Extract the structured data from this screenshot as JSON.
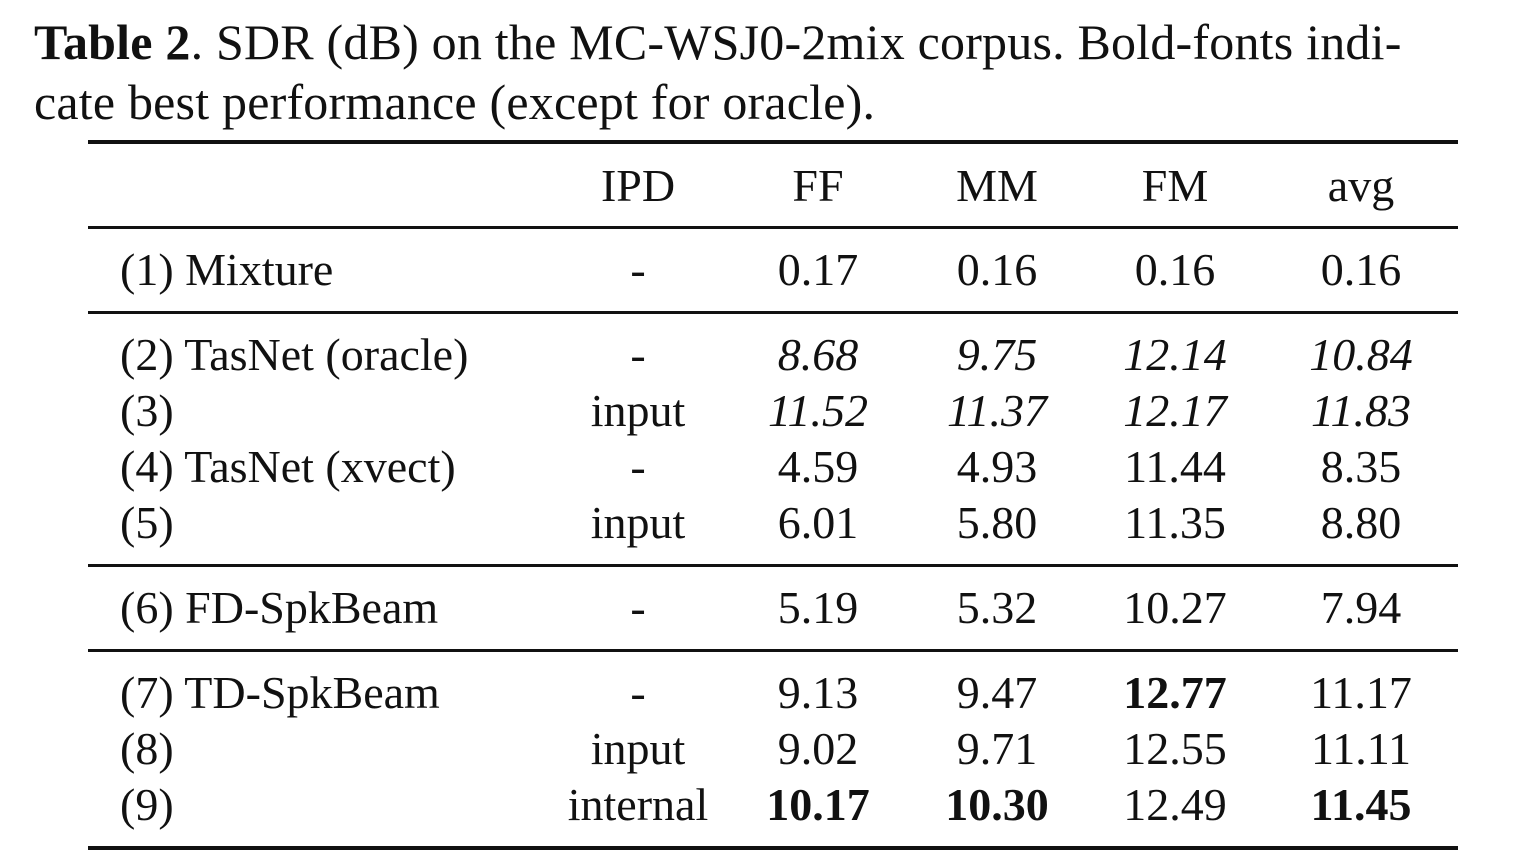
{
  "caption": {
    "label": "Table 2",
    "line1_rest": ". SDR (dB) on the MC-WSJ0-2mix corpus. Bold-fonts indi-",
    "line2": "cate best performance (except for oracle)."
  },
  "table": {
    "headers": [
      "",
      "IPD",
      "FF",
      "MM",
      "FM",
      "avg"
    ],
    "rows": [
      {
        "name": "(1) Mixture",
        "ipd": "-",
        "ff": "0.17",
        "mm": "0.16",
        "fm": "0.16",
        "avg": "0.16"
      },
      {
        "name": "(2) TasNet (oracle)",
        "ipd": "-",
        "ff": "8.68",
        "mm": "9.75",
        "fm": "12.14",
        "avg": "10.84"
      },
      {
        "name": "(3)",
        "ipd": "input",
        "ff": "11.52",
        "mm": "11.37",
        "fm": "12.17",
        "avg": "11.83"
      },
      {
        "name": "(4) TasNet (xvect)",
        "ipd": "-",
        "ff": "4.59",
        "mm": "4.93",
        "fm": "11.44",
        "avg": "8.35"
      },
      {
        "name": "(5)",
        "ipd": "input",
        "ff": "6.01",
        "mm": "5.80",
        "fm": "11.35",
        "avg": "8.80"
      },
      {
        "name": "(6) FD-SpkBeam",
        "ipd": "-",
        "ff": "5.19",
        "mm": "5.32",
        "fm": "10.27",
        "avg": "7.94"
      },
      {
        "name": "(7) TD-SpkBeam",
        "ipd": "-",
        "ff": "9.13",
        "mm": "9.47",
        "fm": "12.77",
        "avg": "11.17"
      },
      {
        "name": "(8)",
        "ipd": "input",
        "ff": "9.02",
        "mm": "9.71",
        "fm": "12.55",
        "avg": "11.11"
      },
      {
        "name": "(9)",
        "ipd": "internal",
        "ff": "10.17",
        "mm": "10.30",
        "fm": "12.49",
        "avg": "11.45"
      }
    ]
  }
}
